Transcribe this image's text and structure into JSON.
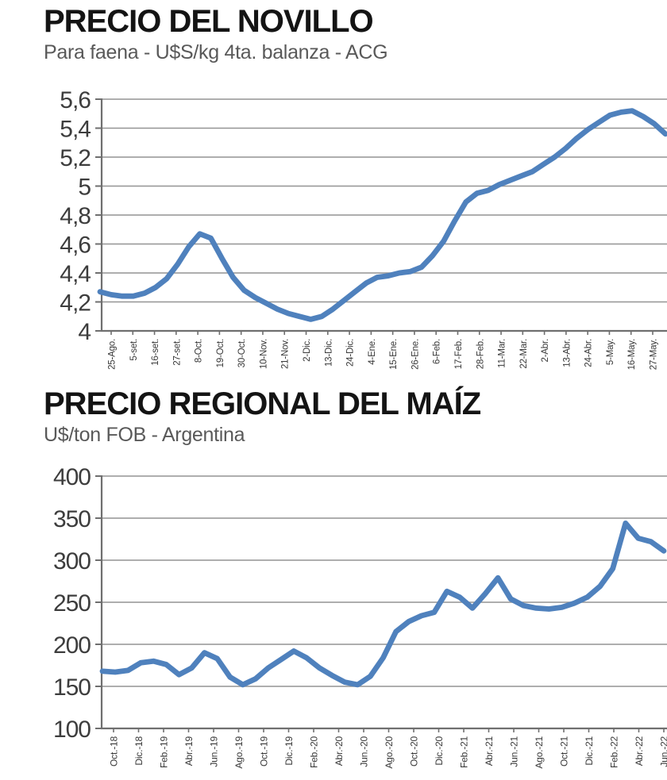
{
  "chart_data": [
    {
      "type": "line",
      "title": "PRECIO DEL NOVILLO",
      "subtitle": "Para faena - U$S/kg 4ta. balanza - ACG",
      "ylim": [
        4.0,
        5.6
      ],
      "grid": true,
      "legend": "none",
      "line_color": "#4f81bd",
      "grid_color": "#949494",
      "axis_color": "#6f6f6f",
      "label_color": "#3d3d3d",
      "y_ticks": [
        {
          "label": "5,6",
          "value": 5.6
        },
        {
          "label": "5,4",
          "value": 5.4
        },
        {
          "label": "5,2",
          "value": 5.2
        },
        {
          "label": "5",
          "value": 5.0
        },
        {
          "label": "4,8",
          "value": 4.8
        },
        {
          "label": "4,6",
          "value": 4.6
        },
        {
          "label": "4,4",
          "value": 4.4
        },
        {
          "label": "4,2",
          "value": 4.2
        },
        {
          "label": "4",
          "value": 4.0
        }
      ],
      "x_tick_labels": [
        "25-Ago.",
        "5-set.",
        "16-set.",
        "27-set.",
        "8-Oct.",
        "19-Oct.",
        "30-Oct.",
        "10-Nov.",
        "21-Nov.",
        "2-Dic.",
        "13-Dic.",
        "24-Dic.",
        "4-Ene.",
        "15-Ene.",
        "26-Ene.",
        "6-Feb.",
        "17-Feb.",
        "28-Feb.",
        "11-Mar.",
        "22-Mar.",
        "2-Abr.",
        "13-Abr.",
        "24-Abr.",
        "5-May.",
        "16-May.",
        "27-May."
      ],
      "values": [
        4.27,
        4.25,
        4.24,
        4.24,
        4.26,
        4.3,
        4.36,
        4.46,
        4.58,
        4.67,
        4.64,
        4.5,
        4.37,
        4.28,
        4.23,
        4.19,
        4.15,
        4.12,
        4.1,
        4.08,
        4.1,
        4.15,
        4.21,
        4.27,
        4.33,
        4.37,
        4.38,
        4.4,
        4.41,
        4.44,
        4.52,
        4.62,
        4.76,
        4.89,
        4.95,
        4.97,
        5.01,
        5.04,
        5.07,
        5.1,
        5.15,
        5.2,
        5.26,
        5.33,
        5.39,
        5.44,
        5.49,
        5.51,
        5.52,
        5.48,
        5.43,
        5.36
      ]
    },
    {
      "type": "line",
      "title": "PRECIO REGIONAL DEL MAÍZ",
      "subtitle": "U$/ton FOB - Argentina",
      "ylim": [
        100,
        400
      ],
      "grid": true,
      "legend": "none",
      "line_color": "#4f81bd",
      "grid_color": "#949494",
      "axis_color": "#6f6f6f",
      "label_color": "#3d3d3d",
      "y_ticks": [
        {
          "label": "400",
          "value": 400
        },
        {
          "label": "350",
          "value": 350
        },
        {
          "label": "300",
          "value": 300
        },
        {
          "label": "250",
          "value": 250
        },
        {
          "label": "200",
          "value": 200
        },
        {
          "label": "150",
          "value": 150
        },
        {
          "label": "100",
          "value": 100
        }
      ],
      "x_tick_labels": [
        "Oct.-18",
        "Dic.-18",
        "Feb.-19",
        "Abr.-19",
        "Jun.-19",
        "Ago.-19",
        "Oct.-19",
        "Dic.-19",
        "Feb.-20",
        "Abr.-20",
        "Jun.-20",
        "Ago.-20",
        "Oct.-20",
        "Dic.-20",
        "Feb.-21",
        "Abr.-21",
        "Jun.-21",
        "Ago.-21",
        "Oct.-21",
        "Dic.-21",
        "Feb.-22",
        "Abr.-22",
        "Jun.-22"
      ],
      "values": [
        168,
        167,
        169,
        178,
        180,
        176,
        164,
        172,
        190,
        183,
        161,
        152,
        159,
        172,
        182,
        192,
        184,
        172,
        163,
        155,
        152,
        162,
        184,
        215,
        227,
        234,
        238,
        263,
        256,
        243,
        260,
        279,
        254,
        246,
        243,
        242,
        244,
        249,
        256,
        269,
        290,
        344,
        326,
        322,
        311
      ]
    }
  ]
}
